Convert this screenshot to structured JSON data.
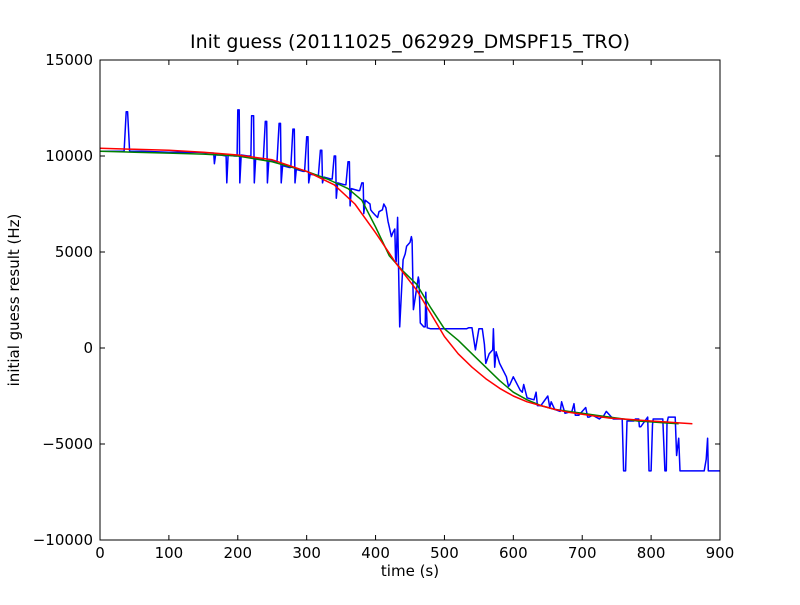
{
  "chart_data": {
    "type": "line",
    "title": "Init guess (20111025_062929_DMSPF15_TRO)",
    "xlabel": "time (s)",
    "ylabel": "initial guess result (Hz)",
    "xlim": [
      0,
      900
    ],
    "ylim": [
      -10000,
      15000
    ],
    "xticks": [
      0,
      100,
      200,
      300,
      400,
      500,
      600,
      700,
      800,
      900
    ],
    "yticks": [
      -10000,
      -5000,
      0,
      5000,
      10000,
      15000
    ],
    "grid": false,
    "legend": "none",
    "series": [
      {
        "color": "#0000ff",
        "x": [
          0,
          35,
          38,
          40,
          43,
          60,
          100,
          140,
          165,
          166,
          168,
          170,
          175,
          183,
          184,
          186,
          195,
          199,
          200,
          202,
          203,
          205,
          215,
          219,
          220,
          223,
          224,
          226,
          235,
          237,
          240,
          242,
          243,
          245,
          255,
          257,
          260,
          262,
          263,
          265,
          275,
          277,
          280,
          282,
          283,
          285,
          295,
          297,
          300,
          302,
          303,
          305,
          315,
          317,
          320,
          322,
          323,
          325,
          335,
          337,
          340,
          342,
          343,
          345,
          355,
          357,
          360,
          362,
          363,
          365,
          375,
          377,
          380,
          382,
          383,
          385,
          392,
          393,
          395,
          400,
          403,
          405,
          410,
          412,
          415,
          418,
          420,
          423,
          425,
          428,
          429,
          430,
          432,
          435,
          440,
          443,
          445,
          450,
          452,
          453,
          455,
          460,
          462,
          463,
          465,
          470,
          472,
          473,
          475,
          480,
          500,
          530,
          532,
          535,
          538,
          540,
          545,
          550,
          553,
          555,
          558,
          560,
          565,
          570,
          571,
          573,
          575,
          580,
          590,
          593,
          595,
          600,
          610,
          613,
          615,
          620,
          630,
          633,
          635,
          640,
          650,
          653,
          655,
          660,
          668,
          670,
          675,
          685,
          688,
          690,
          695,
          705,
          708,
          710,
          715,
          725,
          728,
          730,
          735,
          745,
          750,
          758,
          760,
          763,
          765,
          775,
          777,
          780,
          782,
          783,
          785,
          795,
          797,
          800,
          802,
          803,
          805,
          815,
          817,
          820,
          822,
          823,
          825,
          835,
          837,
          840,
          842,
          843,
          845,
          860,
          875,
          877,
          880,
          882,
          883,
          885,
          900
        ],
        "y": [
          10250,
          10250,
          12300,
          12300,
          10250,
          10250,
          10200,
          10200,
          10150,
          9600,
          10100,
          10050,
          10050,
          10000,
          8600,
          10050,
          10000,
          10000,
          12400,
          12400,
          8600,
          10050,
          10000,
          10000,
          12100,
          12100,
          8600,
          9900,
          9800,
          9800,
          11800,
          11800,
          8600,
          9750,
          9700,
          9700,
          11700,
          11700,
          8600,
          9500,
          9400,
          9400,
          11400,
          11400,
          8600,
          9300,
          9200,
          9200,
          11000,
          11000,
          8600,
          9050,
          9000,
          9000,
          10300,
          10300,
          8600,
          8900,
          8800,
          8800,
          10000,
          10000,
          7800,
          8600,
          8500,
          8500,
          9700,
          9700,
          7400,
          8300,
          8200,
          8200,
          8600,
          8600,
          7000,
          7700,
          7500,
          7200,
          7100,
          6900,
          6800,
          7100,
          7200,
          7500,
          7300,
          6600,
          6300,
          5800,
          6000,
          6200,
          4700,
          4500,
          6800,
          1100,
          4600,
          4900,
          5300,
          5500,
          5800,
          5600,
          2000,
          3200,
          3700,
          3500,
          1300,
          1100,
          1100,
          2900,
          1050,
          1000,
          1000,
          1000,
          1000,
          1050,
          1050,
          1050,
          -100,
          1000,
          1000,
          1000,
          200,
          -800,
          -300,
          -100,
          1000,
          -1000,
          -200,
          -800,
          -1500,
          -2000,
          -1900,
          -1500,
          -2200,
          -2300,
          -1900,
          -2600,
          -2700,
          -2300,
          -3000,
          -3000,
          -2500,
          -3100,
          -2800,
          -3200,
          -3300,
          -2800,
          -3400,
          -3300,
          -2900,
          -3500,
          -3500,
          -3100,
          -3600,
          -3600,
          -3500,
          -3700,
          -3600,
          -3600,
          -3300,
          -3700,
          -3700,
          -3700,
          -6400,
          -6400,
          -3800,
          -3800,
          -3700,
          -3700,
          -3700,
          -4100,
          -4100,
          -3600,
          -6400,
          -6400,
          -4000,
          -3700,
          -3700,
          -3700,
          -3700,
          -6400,
          -6400,
          -3900,
          -3600,
          -3600,
          -5600,
          -4700,
          -6400,
          -6400,
          -6400,
          -6400,
          -6400,
          -6400,
          -5800,
          -4700,
          -6400,
          -6400,
          -6400
        ]
      },
      {
        "color": "#008000",
        "x": [
          0,
          50,
          100,
          150,
          200,
          250,
          300,
          330,
          360,
          380,
          400,
          420,
          440,
          460,
          480,
          500,
          520,
          540,
          560,
          580,
          600,
          620,
          640,
          660,
          680,
          700,
          720,
          740,
          760,
          780,
          800,
          820,
          840
        ],
        "y": [
          10250,
          10200,
          10150,
          10100,
          10000,
          9700,
          9200,
          8800,
          8300,
          7700,
          6300,
          4800,
          4000,
          3300,
          2100,
          1000,
          400,
          -300,
          -1000,
          -1700,
          -2300,
          -2700,
          -3000,
          -3200,
          -3300,
          -3400,
          -3500,
          -3600,
          -3700,
          -3800,
          -3850,
          -3900,
          -3950
        ]
      },
      {
        "color": "#ff0000",
        "x": [
          0,
          50,
          100,
          150,
          200,
          250,
          300,
          340,
          370,
          400,
          430,
          460,
          480,
          500,
          520,
          540,
          560,
          580,
          600,
          620,
          640,
          660,
          680,
          700,
          720,
          740,
          760,
          780,
          800,
          820,
          840,
          860
        ],
        "y": [
          10400,
          10350,
          10300,
          10200,
          10050,
          9800,
          9200,
          8500,
          7500,
          6000,
          4400,
          3000,
          1800,
          600,
          -300,
          -1000,
          -1600,
          -2100,
          -2500,
          -2800,
          -3000,
          -3200,
          -3350,
          -3450,
          -3550,
          -3650,
          -3700,
          -3750,
          -3800,
          -3850,
          -3900,
          -3950
        ]
      }
    ]
  }
}
